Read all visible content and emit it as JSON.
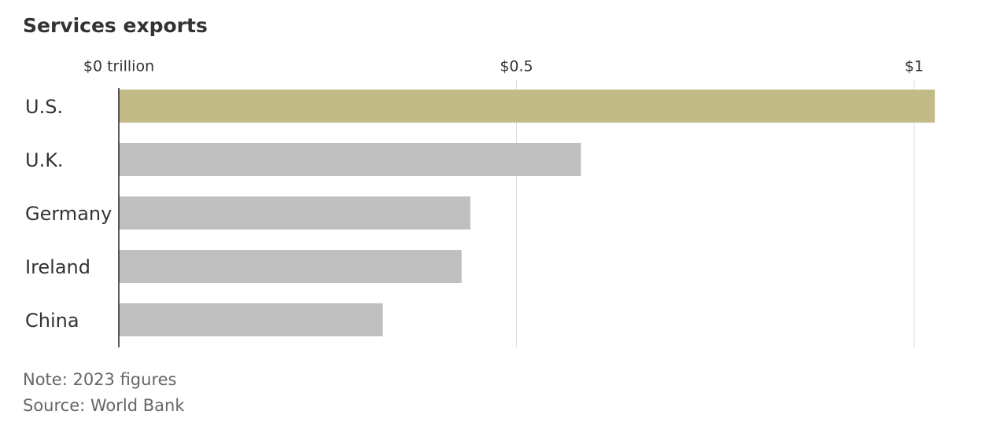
{
  "chart_data": {
    "type": "barh",
    "title": "Services exports",
    "categories": [
      "U.S.",
      "U.K.",
      "Germany",
      "Ireland",
      "China"
    ],
    "values": [
      1.026,
      0.581,
      0.442,
      0.431,
      0.332
    ],
    "colors": [
      "#c2bb87",
      "#bfbfbf",
      "#bfbfbf",
      "#bfbfbf",
      "#bfbfbf"
    ],
    "xlim": [
      0,
      1.05
    ],
    "xticks": [
      {
        "value": 0,
        "label": "$0 trillion"
      },
      {
        "value": 0.5,
        "label": "$0.5"
      },
      {
        "value": 1,
        "label": "$1"
      }
    ],
    "grid": true,
    "note": "Note: 2023 figures",
    "source": "Source: World Bank"
  }
}
